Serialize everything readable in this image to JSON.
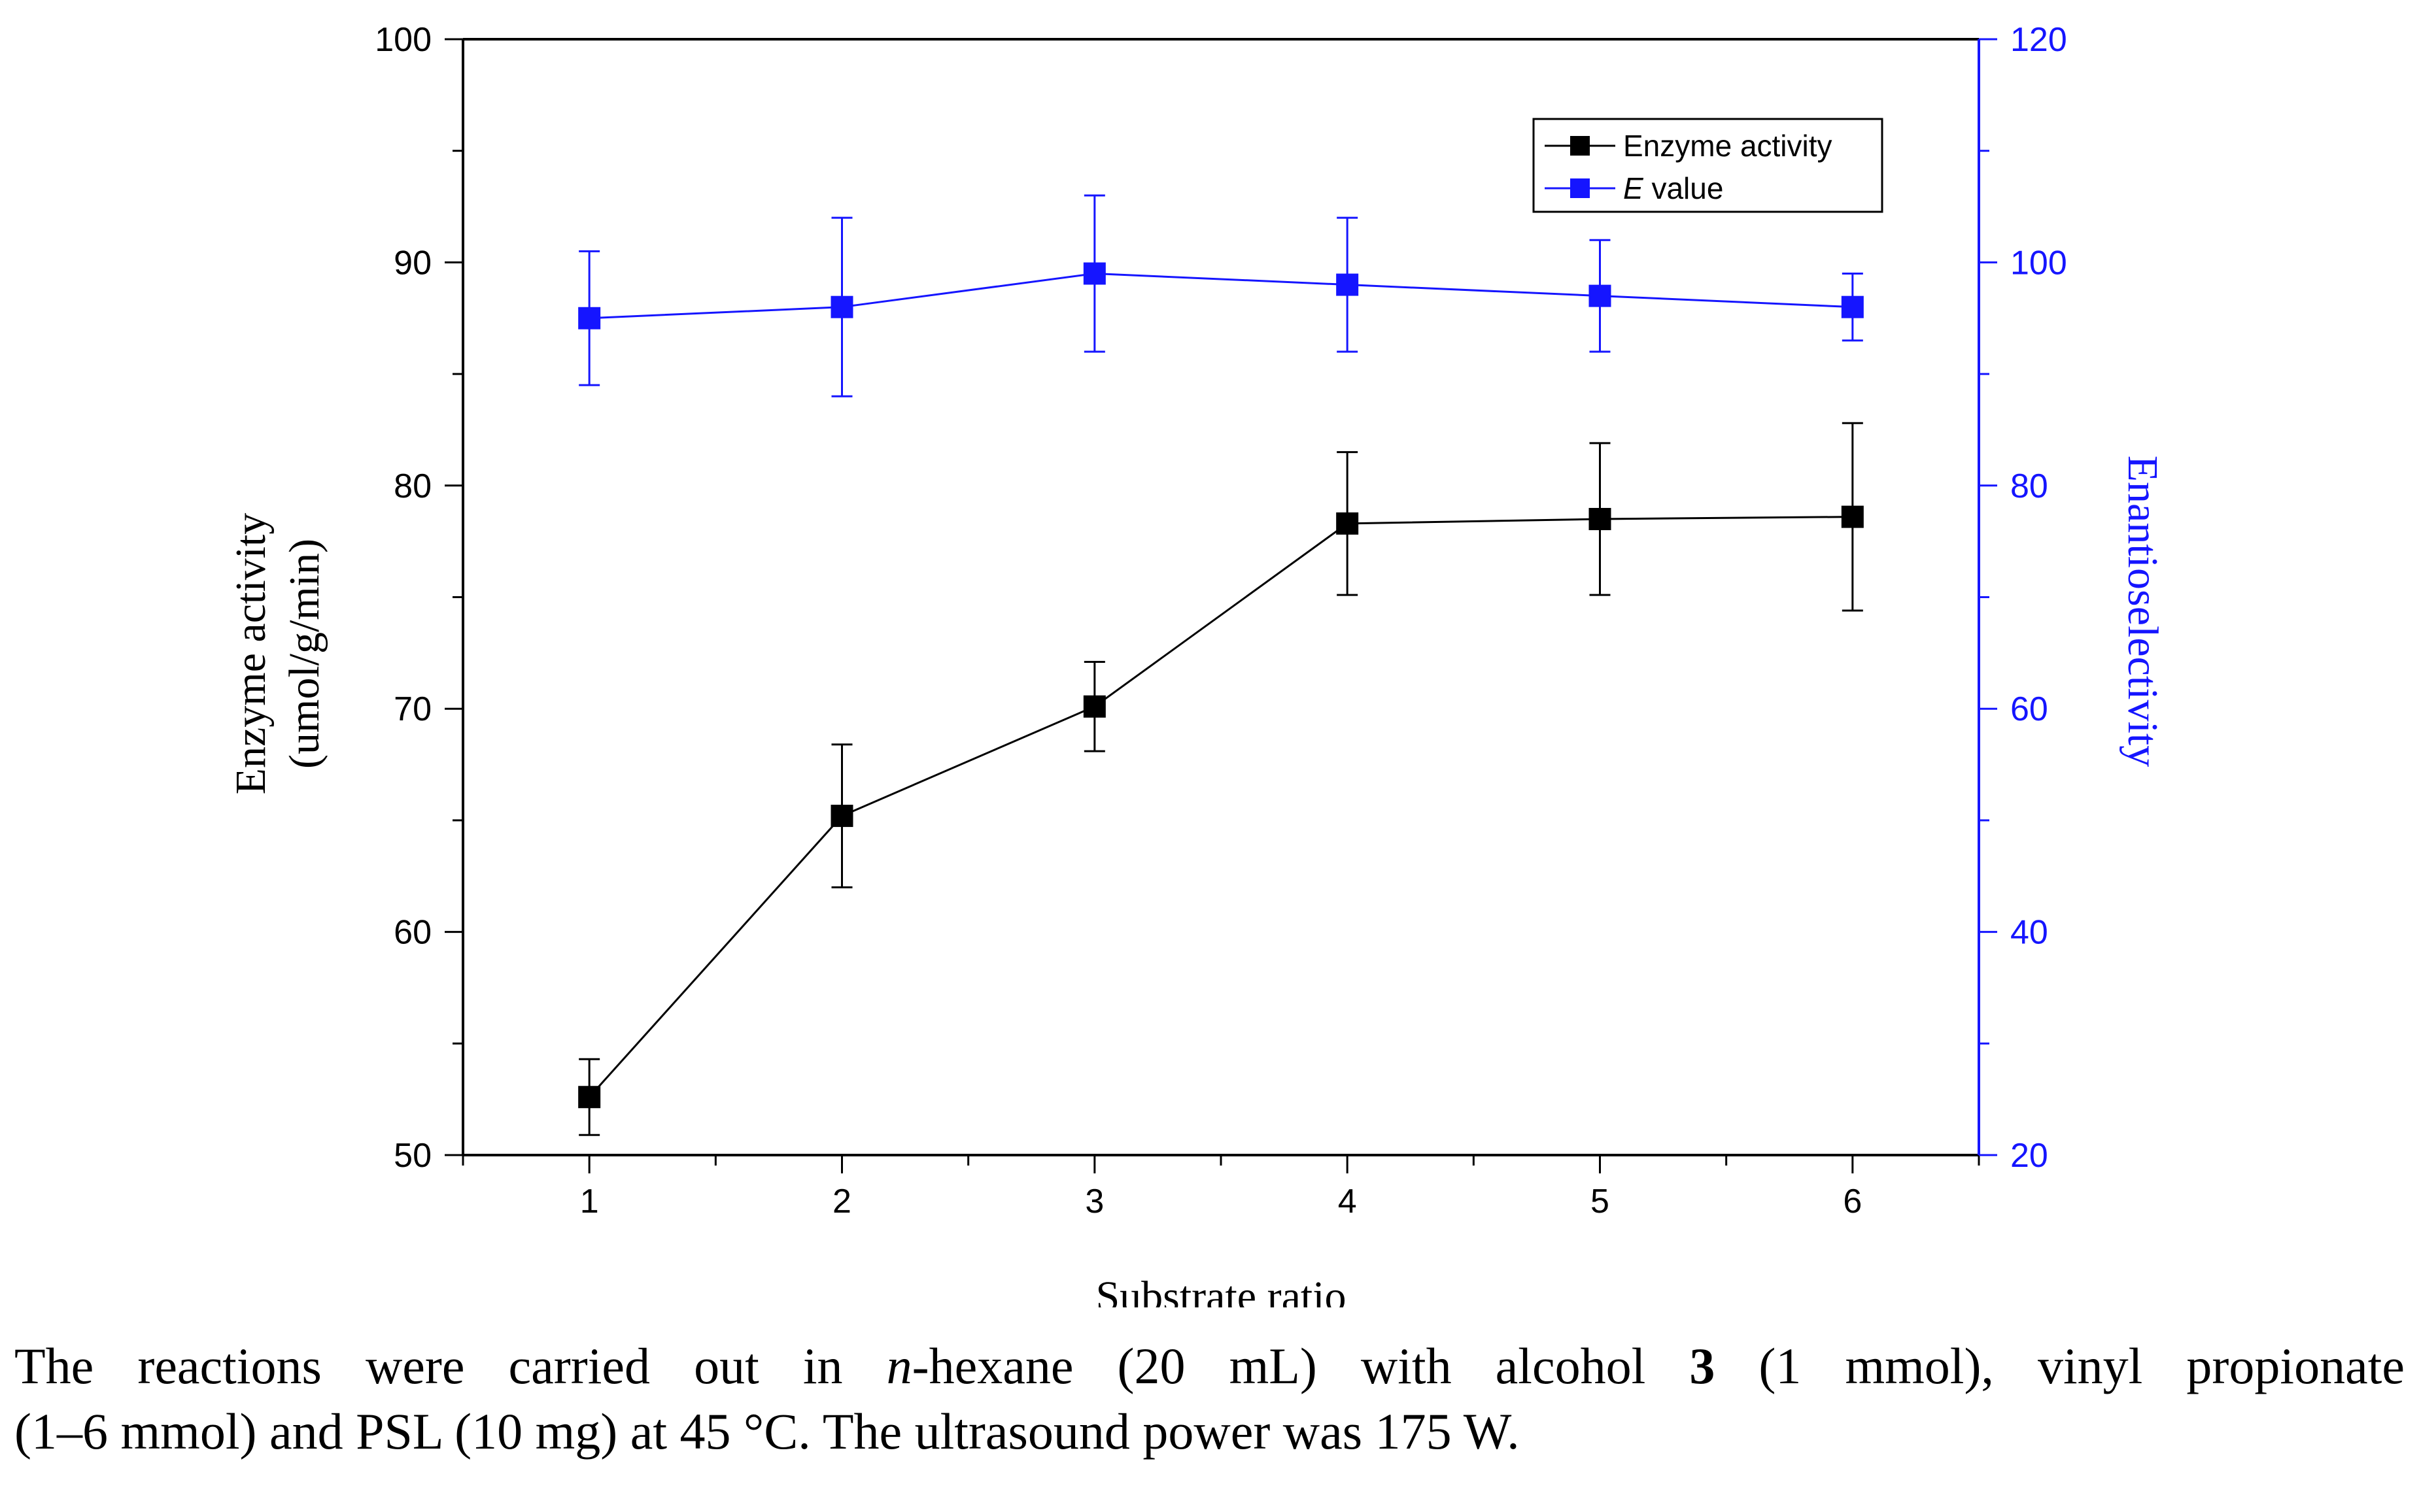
{
  "chart_data": {
    "type": "line",
    "xlabel": "Substrate ratio",
    "ylabel_left_line1": "Enzyme activity",
    "ylabel_left_line2": "(umol/g/min)",
    "ylabel_right": "Enantioselectivity",
    "x": [
      1,
      2,
      3,
      4,
      5,
      6
    ],
    "x_ticks": [
      "1",
      "2",
      "3",
      "4",
      "5",
      "6"
    ],
    "xlim": [
      0.5,
      6.5
    ],
    "ylim_left": [
      50,
      100
    ],
    "ylim_right": [
      20,
      120
    ],
    "y_ticks_left": [
      "50",
      "60",
      "70",
      "80",
      "90",
      "100"
    ],
    "y_ticks_right": [
      "20",
      "40",
      "60",
      "80",
      "100",
      "120"
    ],
    "series": [
      {
        "name": "Enzyme activity",
        "name_italic": "",
        "name_rest": "Enzyme activity",
        "axis": "left",
        "color": "#000000",
        "values": [
          52.6,
          65.2,
          70.1,
          78.3,
          78.5,
          78.6
        ],
        "err_low": [
          50.9,
          62.0,
          68.1,
          75.1,
          75.1,
          74.4
        ],
        "err_high": [
          54.3,
          68.4,
          72.1,
          81.5,
          81.9,
          82.8
        ]
      },
      {
        "name": "E value",
        "name_italic": "E",
        "name_rest": " value",
        "axis": "right",
        "color": "#1515ff",
        "values": [
          95,
          96,
          99,
          98,
          97,
          96
        ],
        "err_low": [
          89,
          88,
          92,
          92,
          92,
          93
        ],
        "err_high": [
          101,
          104,
          106,
          104,
          102,
          99
        ]
      }
    ],
    "legend_position": "top-right"
  },
  "caption": {
    "line1_pre": "The reactions were carried out in ",
    "line1_italic": "n",
    "line1_mid": "-hexane (20 mL) with alcohol ",
    "line1_bold": "3",
    "line1_post": " (1 mmol), vinyl propionate",
    "line2": "(1–6 mmol) and PSL (10 mg) at 45 °C. The ultrasound power was 175 W."
  }
}
